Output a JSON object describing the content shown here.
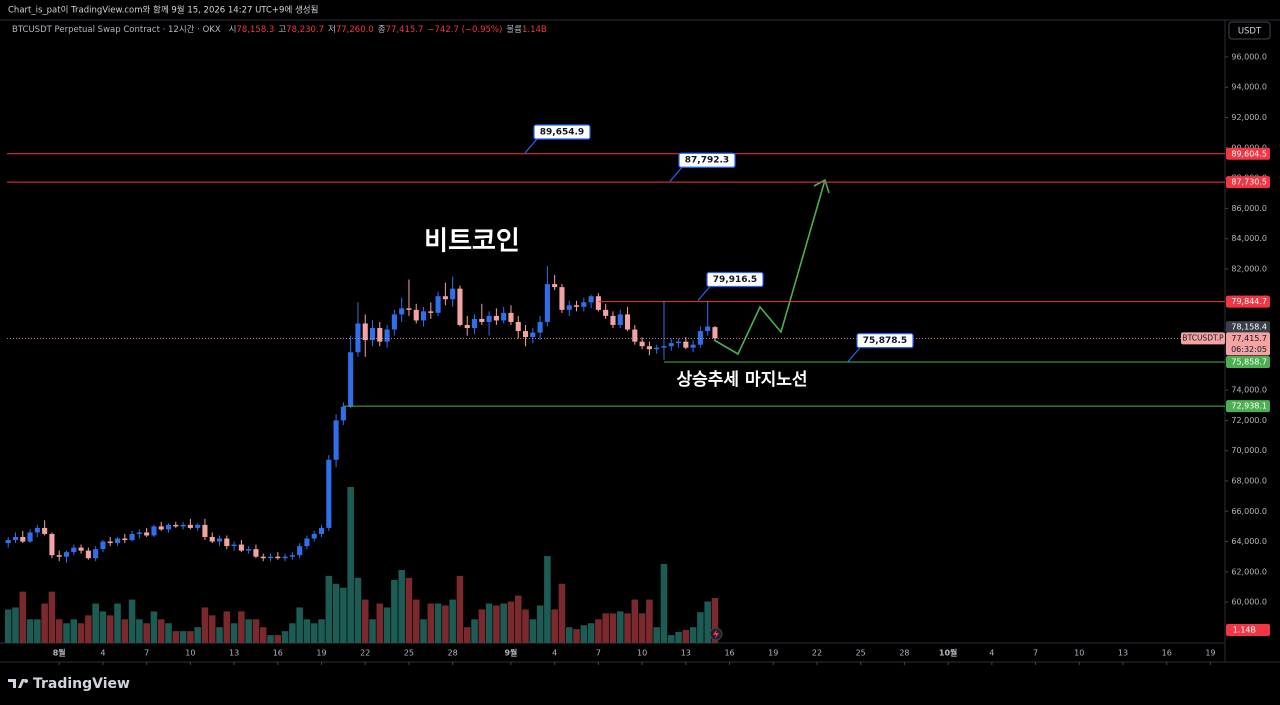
{
  "header": {
    "caption": "Chart_is_pat이 TradingView.com와 함께 9월 15, 2026 14:27 UTC+9에 생성됨"
  },
  "toolbar": {
    "currency": "USDT"
  },
  "footer": {
    "brand": "TradingView"
  },
  "chart_data": {
    "type": "candlestick",
    "legend": {
      "title": "BTCUSDT Perpetual Swap Contract · 12시간 · OKX",
      "items": [
        {
          "key": "시",
          "value": "78,158.3"
        },
        {
          "key": "고",
          "value": "78,230.7"
        },
        {
          "key": "저",
          "value": "77,260.0"
        },
        {
          "key": "종",
          "value": "77,415.7"
        }
      ],
      "change": "−742.7 (−0.95%)",
      "volume_key": "볼륨",
      "volume": "1.14B"
    },
    "x": [
      "2026-07-28T12:00",
      "2026-07-29T00:00",
      "2026-07-29T12:00",
      "2026-07-30T00:00",
      "2026-07-30T12:00",
      "2026-07-31T00:00",
      "2026-07-31T12:00",
      "2026-08-01T00:00",
      "2026-08-01T12:00",
      "2026-08-02T00:00",
      "2026-08-02T12:00",
      "2026-08-03T00:00",
      "2026-08-03T12:00",
      "2026-08-04T00:00",
      "2026-08-04T12:00",
      "2026-08-05T00:00",
      "2026-08-05T12:00",
      "2026-08-06T00:00",
      "2026-08-06T12:00",
      "2026-08-07T00:00",
      "2026-08-07T12:00",
      "2026-08-08T00:00",
      "2026-08-08T12:00",
      "2026-08-09T00:00",
      "2026-08-09T12:00",
      "2026-08-10T00:00",
      "2026-08-10T12:00",
      "2026-08-11T00:00",
      "2026-08-11T12:00",
      "2026-08-12T00:00",
      "2026-08-12T12:00",
      "2026-08-13T00:00",
      "2026-08-13T12:00",
      "2026-08-14T00:00",
      "2026-08-14T12:00",
      "2026-08-15T00:00",
      "2026-08-15T12:00",
      "2026-08-16T00:00",
      "2026-08-16T12:00",
      "2026-08-17T00:00",
      "2026-08-17T12:00",
      "2026-08-18T00:00",
      "2026-08-18T12:00",
      "2026-08-19T00:00",
      "2026-08-19T12:00",
      "2026-08-20T00:00",
      "2026-08-20T12:00",
      "2026-08-21T00:00",
      "2026-08-21T12:00",
      "2026-08-22T00:00",
      "2026-08-22T12:00",
      "2026-08-23T00:00",
      "2026-08-23T12:00",
      "2026-08-24T00:00",
      "2026-08-24T12:00",
      "2026-08-25T00:00",
      "2026-08-25T12:00",
      "2026-08-26T00:00",
      "2026-08-26T12:00",
      "2026-08-27T00:00",
      "2026-08-27T12:00",
      "2026-08-28T00:00",
      "2026-08-28T12:00",
      "2026-08-29T00:00",
      "2026-08-29T12:00",
      "2026-08-30T00:00",
      "2026-08-30T12:00",
      "2026-08-31T00:00",
      "2026-08-31T12:00",
      "2026-09-01T00:00",
      "2026-09-01T12:00",
      "2026-09-02T00:00",
      "2026-09-02T12:00",
      "2026-09-03T00:00",
      "2026-09-03T12:00",
      "2026-09-04T00:00",
      "2026-09-04T12:00",
      "2026-09-05T00:00",
      "2026-09-05T12:00",
      "2026-09-06T00:00",
      "2026-09-06T12:00",
      "2026-09-07T00:00",
      "2026-09-07T12:00",
      "2026-09-08T00:00",
      "2026-09-08T12:00",
      "2026-09-09T00:00",
      "2026-09-09T12:00",
      "2026-09-10T00:00",
      "2026-09-10T12:00",
      "2026-09-11T00:00",
      "2026-09-11T12:00",
      "2026-09-12T00:00",
      "2026-09-12T12:00",
      "2026-09-13T00:00",
      "2026-09-13T12:00",
      "2026-09-14T00:00",
      "2026-09-14T12:00",
      "2026-09-15T00:00"
    ],
    "open": [
      63900,
      64100,
      64300,
      64000,
      64600,
      64900,
      64500,
      63100,
      63000,
      63300,
      63600,
      63400,
      62900,
      63500,
      64000,
      63900,
      64200,
      64100,
      64500,
      64600,
      64400,
      65000,
      64800,
      65100,
      65000,
      65100,
      64900,
      65100,
      64300,
      64000,
      64200,
      63700,
      63800,
      63400,
      63500,
      63000,
      62900,
      63000,
      62900,
      63000,
      63100,
      63700,
      64200,
      64500,
      64900,
      69400,
      72000,
      72900,
      76500,
      78400,
      77300,
      78100,
      77200,
      78000,
      79000,
      79400,
      79300,
      78600,
      79200,
      79100,
      80200,
      80000,
      80700,
      78300,
      78100,
      78700,
      78500,
      78900,
      78600,
      79100,
      78500,
      77900,
      77500,
      77800,
      78500,
      81000,
      80800,
      79300,
      79600,
      79500,
      79800,
      80200,
      79300,
      78900,
      78300,
      79000,
      78000,
      77200,
      76900,
      76700,
      76800,
      76900,
      77100,
      77200,
      76800,
      77000,
      77900,
      78158.3
    ],
    "high": [
      64300,
      64600,
      64700,
      64800,
      65100,
      65400,
      64600,
      63400,
      63400,
      63800,
      63800,
      63600,
      63700,
      64100,
      64300,
      64300,
      64500,
      64700,
      64800,
      64900,
      65100,
      65300,
      65200,
      65300,
      65300,
      65500,
      65200,
      65500,
      64600,
      64400,
      64400,
      64000,
      64100,
      63700,
      63800,
      63200,
      63200,
      63300,
      63200,
      63300,
      63900,
      64400,
      64700,
      65100,
      69700,
      72400,
      73200,
      77600,
      79800,
      79000,
      78600,
      78500,
      78300,
      79300,
      80100,
      81300,
      79700,
      79500,
      79800,
      80500,
      81100,
      81500,
      80900,
      78900,
      79000,
      79700,
      79200,
      79400,
      79500,
      79600,
      78900,
      78300,
      78100,
      78900,
      82200,
      81600,
      81000,
      79900,
      79900,
      80100,
      80300,
      80400,
      79700,
      79200,
      79300,
      79500,
      78300,
      77500,
      77200,
      77000,
      79900,
      77400,
      77400,
      77500,
      77300,
      78200,
      79900,
      78230.7
    ],
    "low": [
      63600,
      63900,
      63900,
      63900,
      64300,
      64400,
      62900,
      62700,
      62600,
      63100,
      63200,
      62800,
      62700,
      63300,
      63700,
      63700,
      63900,
      64000,
      64200,
      64300,
      64300,
      64700,
      64600,
      64900,
      64800,
      64800,
      64700,
      64100,
      63900,
      63700,
      63500,
      63400,
      63300,
      63200,
      62900,
      62700,
      62700,
      62800,
      62700,
      62800,
      62900,
      63500,
      64000,
      64300,
      64700,
      68900,
      71700,
      72800,
      76200,
      76200,
      76900,
      76900,
      76800,
      77600,
      78500,
      78900,
      78400,
      78200,
      78700,
      78900,
      79600,
      79500,
      78200,
      77600,
      77700,
      78300,
      77600,
      78300,
      78400,
      78300,
      77400,
      76900,
      77100,
      77300,
      78200,
      80600,
      79100,
      78900,
      79200,
      79200,
      79400,
      79200,
      78700,
      78100,
      78100,
      77900,
      77000,
      76700,
      76300,
      76400,
      76000,
      76600,
      76800,
      76700,
      76500,
      76800,
      77600,
      77260
    ],
    "close": [
      64100,
      64300,
      64000,
      64600,
      64900,
      64500,
      63100,
      63000,
      63300,
      63600,
      63400,
      62900,
      63500,
      64000,
      63900,
      64200,
      64100,
      64500,
      64600,
      64400,
      65000,
      64800,
      65100,
      65000,
      65100,
      64900,
      65100,
      64300,
      64000,
      64200,
      63700,
      63800,
      63400,
      63500,
      63000,
      62900,
      63000,
      62900,
      63000,
      63100,
      63700,
      64200,
      64500,
      64900,
      69400,
      72000,
      72900,
      76500,
      78400,
      77300,
      78100,
      77200,
      78000,
      79000,
      79400,
      79300,
      78600,
      79200,
      79100,
      80200,
      80000,
      80700,
      78300,
      78100,
      78700,
      78500,
      78900,
      78600,
      79100,
      78500,
      77900,
      77500,
      77800,
      78500,
      81000,
      80800,
      79300,
      79600,
      79500,
      79800,
      80200,
      79300,
      78900,
      78300,
      79000,
      78000,
      77200,
      76900,
      76700,
      76800,
      76900,
      77100,
      77200,
      76800,
      77000,
      77900,
      78200,
      77415.7
    ],
    "volume": [
      0.85,
      0.9,
      1.3,
      0.6,
      0.6,
      1.0,
      1.3,
      0.6,
      0.5,
      0.6,
      0.5,
      0.7,
      1.0,
      0.8,
      0.7,
      1.0,
      0.6,
      1.1,
      0.6,
      0.5,
      0.8,
      0.6,
      0.5,
      0.3,
      0.3,
      0.3,
      0.4,
      0.9,
      0.7,
      0.4,
      0.8,
      0.5,
      0.8,
      0.6,
      0.6,
      0.4,
      0.2,
      0.2,
      0.3,
      0.5,
      0.9,
      0.6,
      0.5,
      0.6,
      1.7,
      1.5,
      1.4,
      3.95,
      1.65,
      1.1,
      0.6,
      1.0,
      0.9,
      1.6,
      1.85,
      1.65,
      1.1,
      0.6,
      1.0,
      1.0,
      0.95,
      1.1,
      1.7,
      0.4,
      0.6,
      0.85,
      1.0,
      0.95,
      1.0,
      1.05,
      1.2,
      0.85,
      0.6,
      0.95,
      2.2,
      0.85,
      1.5,
      0.4,
      0.35,
      0.45,
      0.5,
      0.6,
      0.75,
      0.75,
      0.8,
      0.75,
      1.1,
      0.75,
      1.1,
      0.4,
      2.0,
      0.2,
      0.28,
      0.33,
      0.4,
      0.78,
      1.05,
      1.14
    ],
    "up_color": "#2f6fea",
    "down_color": "#f4a3a3",
    "volume_up_color": "#1c5c54",
    "volume_down_color": "#7a2a2e",
    "xlim": [
      "2026-07-28T10:00",
      "2026-10-20T00:00"
    ],
    "xticks": [
      {
        "value": "2026-08-01T00:00",
        "label": "8월"
      },
      {
        "value": "2026-08-04T00:00",
        "label": "4"
      },
      {
        "value": "2026-08-07T00:00",
        "label": "7"
      },
      {
        "value": "2026-08-10T00:00",
        "label": "10"
      },
      {
        "value": "2026-08-13T00:00",
        "label": "13"
      },
      {
        "value": "2026-08-16T00:00",
        "label": "16"
      },
      {
        "value": "2026-08-19T00:00",
        "label": "19"
      },
      {
        "value": "2026-08-22T00:00",
        "label": "22"
      },
      {
        "value": "2026-08-25T00:00",
        "label": "25"
      },
      {
        "value": "2026-08-28T00:00",
        "label": "28"
      },
      {
        "value": "2026-09-01T00:00",
        "label": "9월"
      },
      {
        "value": "2026-09-04T00:00",
        "label": "4"
      },
      {
        "value": "2026-09-07T00:00",
        "label": "7"
      },
      {
        "value": "2026-09-10T00:00",
        "label": "10"
      },
      {
        "value": "2026-09-13T00:00",
        "label": "13"
      },
      {
        "value": "2026-09-16T00:00",
        "label": "16"
      },
      {
        "value": "2026-09-19T00:00",
        "label": "19"
      },
      {
        "value": "2026-09-22T00:00",
        "label": "22"
      },
      {
        "value": "2026-09-25T00:00",
        "label": "25"
      },
      {
        "value": "2026-09-28T00:00",
        "label": "28"
      },
      {
        "value": "2026-10-01T00:00",
        "label": "10월"
      },
      {
        "value": "2026-10-04T00:00",
        "label": "4"
      },
      {
        "value": "2026-10-07T00:00",
        "label": "7"
      },
      {
        "value": "2026-10-10T00:00",
        "label": "10"
      },
      {
        "value": "2026-10-13T00:00",
        "label": "13"
      },
      {
        "value": "2026-10-16T00:00",
        "label": "16"
      },
      {
        "value": "2026-10-19T00:00",
        "label": "19"
      }
    ],
    "ylim": [
      57300,
      98440
    ],
    "yticks": [
      {
        "value": 60000,
        "label": "60,000.0"
      },
      {
        "value": 62000,
        "label": "62,000.0"
      },
      {
        "value": 64000,
        "label": "64,000.0"
      },
      {
        "value": 66000,
        "label": "66,000.0"
      },
      {
        "value": 68000,
        "label": "68,000.0"
      },
      {
        "value": 70000,
        "label": "70,000.0"
      },
      {
        "value": 72000,
        "label": "72,000.0"
      },
      {
        "value": 74000,
        "label": "74,000.0"
      },
      {
        "value": 76000,
        "label": "76,000.0"
      },
      {
        "value": 78000,
        "label": "78,000.0"
      },
      {
        "value": 80000,
        "label": "80,000.0"
      },
      {
        "value": 82000,
        "label": "82,000.0"
      },
      {
        "value": 84000,
        "label": "84,000.0"
      },
      {
        "value": 86000,
        "label": "86,000.0"
      },
      {
        "value": 88000,
        "label": "88,000.0"
      },
      {
        "value": 90000,
        "label": "90,000.0"
      },
      {
        "value": 92000,
        "label": "92,000.0"
      },
      {
        "value": 94000,
        "label": "94,000.0"
      },
      {
        "value": 96000,
        "label": "96,000.0"
      }
    ],
    "grid": false,
    "hlines": [
      {
        "value": 89604.5,
        "label": "89,604.5",
        "color": "#f23645"
      },
      {
        "value": 87730.5,
        "label": "87,730.5",
        "color": "#f23645"
      },
      {
        "value": 79844.7,
        "label": "79,844.7",
        "color": "#f23645",
        "from": "2026-09-07T00:00"
      },
      {
        "value": 75858.7,
        "label": "75,858.7",
        "color": "#4caf50",
        "from": "2026-09-11T12:00"
      },
      {
        "value": 72938.1,
        "label": "72,938.1",
        "color": "#4caf50",
        "from": "2026-08-20T12:00"
      }
    ],
    "callouts": [
      {
        "value": 89654.9,
        "label": "89,654.9"
      },
      {
        "value": 87792.3,
        "label": "87,792.3"
      },
      {
        "value": 79916.5,
        "label": "79,916.5"
      },
      {
        "value": 75878.5,
        "label": "75,878.5"
      }
    ],
    "annotations": [
      "비트코인",
      "상승추세 마지노선"
    ],
    "marker_price": {
      "value": 78158.4,
      "label": "78,158.4"
    },
    "last_price": {
      "value": 77415.7,
      "label": "77,415.7"
    },
    "symbol_label": "BTCUSDT.P",
    "countdown": "06:32:05"
  }
}
